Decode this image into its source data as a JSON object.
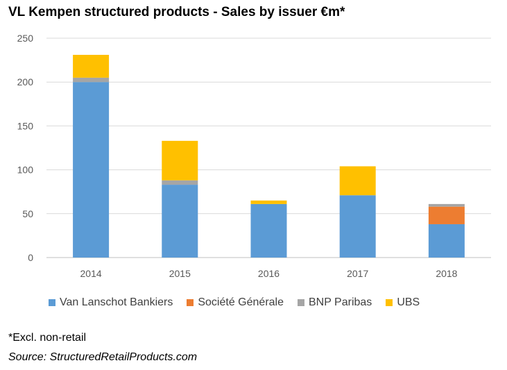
{
  "chart_data": {
    "type": "bar",
    "stacked": true,
    "title": "VL Kempen structured products - Sales by issuer €m*",
    "categories": [
      "2014",
      "2015",
      "2016",
      "2017",
      "2018"
    ],
    "series": [
      {
        "name": "Van Lanschot Bankiers",
        "color": "#5B9BD5",
        "values": [
          200,
          83,
          61,
          71,
          38
        ]
      },
      {
        "name": "Société Générale",
        "color": "#ED7D31",
        "values": [
          0,
          0,
          0,
          0,
          20
        ]
      },
      {
        "name": "BNP Paribas",
        "color": "#A5A5A5",
        "values": [
          5,
          5,
          0,
          0,
          3
        ]
      },
      {
        "name": "UBS",
        "color": "#FFC000",
        "values": [
          26,
          45,
          4,
          33,
          0
        ]
      }
    ],
    "ylim": [
      0,
      250
    ],
    "yticks": [
      0,
      50,
      100,
      150,
      200,
      250
    ],
    "grid": true,
    "legend_position": "bottom",
    "xlabel": "",
    "ylabel": ""
  },
  "footnote": "*Excl. non-retail",
  "source": "Source: StructuredRetailProducts.com"
}
